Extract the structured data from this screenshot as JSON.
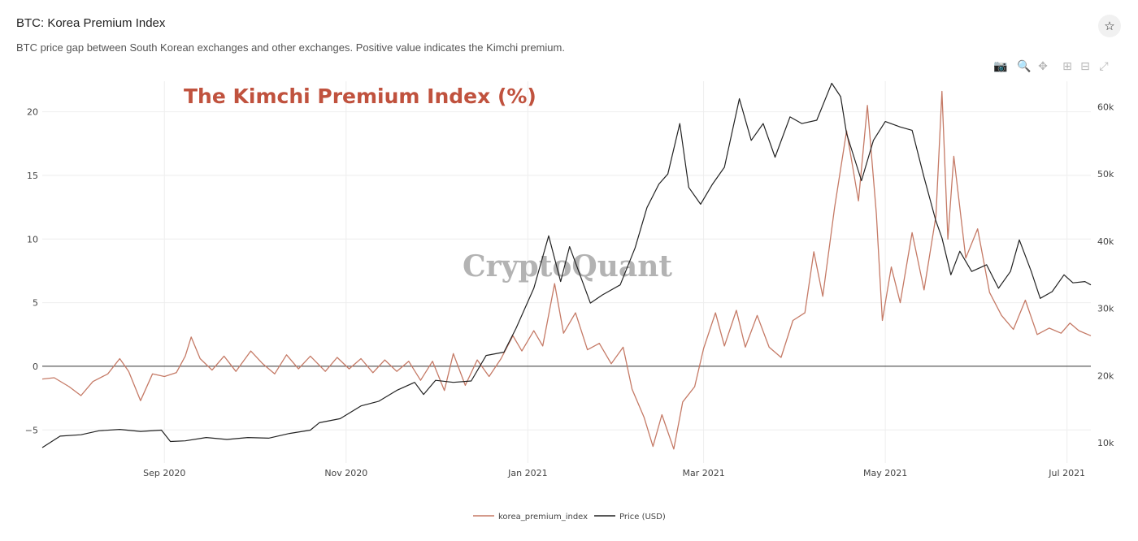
{
  "header": {
    "title": "BTC: Korea Premium Index",
    "subtitle": "BTC price gap between South Korean exchanges and other exchanges. Positive value indicates the Kimchi premium.",
    "favorite_icon": "star-icon"
  },
  "modebar": {
    "buttons": [
      {
        "name": "camera-icon",
        "glyph": "📷"
      },
      {
        "name": "zoom-icon",
        "glyph": "🔍"
      },
      {
        "name": "pan-icon",
        "glyph": "✥"
      },
      {
        "name": "zoom-in-icon",
        "glyph": "⊞"
      },
      {
        "name": "zoom-out-icon",
        "glyph": "⊟"
      },
      {
        "name": "autoscale-icon",
        "glyph": "⤢"
      }
    ]
  },
  "annotation": {
    "text": "The Kimchi Premium Index (%)",
    "color": "#c0523e"
  },
  "watermark": "CryptoQuant",
  "chart_data": {
    "type": "line",
    "x_range": [
      "2020-07-22",
      "2021-07-09"
    ],
    "y_left_range": [
      -7.6,
      22.4
    ],
    "y_right_range": [
      7000,
      63800
    ],
    "x_ticks": [
      {
        "date": "2020-09-01",
        "label": "Sep 2020"
      },
      {
        "date": "2020-11-01",
        "label": "Nov 2020"
      },
      {
        "date": "2021-01-01",
        "label": "Jan 2021"
      },
      {
        "date": "2021-03-01",
        "label": "Mar 2021"
      },
      {
        "date": "2021-05-01",
        "label": "May 2021"
      },
      {
        "date": "2021-07-01",
        "label": "Jul 2021"
      }
    ],
    "y_left_ticks": [
      20,
      15,
      10,
      5,
      0,
      -5
    ],
    "y_left_tick_labels": [
      "20",
      "15",
      "10",
      "5",
      "0",
      "−5"
    ],
    "y_right_ticks": [
      60000,
      50000,
      40000,
      30000,
      20000,
      10000
    ],
    "y_right_tick_labels": [
      "60k",
      "50k",
      "40k",
      "30k",
      "20k",
      "10k"
    ],
    "grid": true,
    "legend_position": "bottom-center",
    "series": [
      {
        "name": "korea_premium_index",
        "axis": "left",
        "color": "#c57a66",
        "points": [
          [
            "2020-07-22",
            -1.0
          ],
          [
            "2020-07-26",
            -0.9
          ],
          [
            "2020-07-31",
            -1.6
          ],
          [
            "2020-08-04",
            -2.3
          ],
          [
            "2020-08-08",
            -1.2
          ],
          [
            "2020-08-13",
            -0.6
          ],
          [
            "2020-08-17",
            0.6
          ],
          [
            "2020-08-20",
            -0.4
          ],
          [
            "2020-08-24",
            -2.7
          ],
          [
            "2020-08-28",
            -0.6
          ],
          [
            "2020-09-01",
            -0.8
          ],
          [
            "2020-09-05",
            -0.5
          ],
          [
            "2020-09-08",
            0.8
          ],
          [
            "2020-09-10",
            2.3
          ],
          [
            "2020-09-13",
            0.6
          ],
          [
            "2020-09-17",
            -0.3
          ],
          [
            "2020-09-21",
            0.8
          ],
          [
            "2020-09-25",
            -0.4
          ],
          [
            "2020-09-30",
            1.2
          ],
          [
            "2020-10-04",
            0.2
          ],
          [
            "2020-10-08",
            -0.6
          ],
          [
            "2020-10-12",
            0.9
          ],
          [
            "2020-10-16",
            -0.2
          ],
          [
            "2020-10-20",
            0.8
          ],
          [
            "2020-10-25",
            -0.4
          ],
          [
            "2020-10-29",
            0.7
          ],
          [
            "2020-11-02",
            -0.2
          ],
          [
            "2020-11-06",
            0.6
          ],
          [
            "2020-11-10",
            -0.5
          ],
          [
            "2020-11-14",
            0.5
          ],
          [
            "2020-11-18",
            -0.4
          ],
          [
            "2020-11-22",
            0.4
          ],
          [
            "2020-11-26",
            -1.1
          ],
          [
            "2020-11-30",
            0.4
          ],
          [
            "2020-12-04",
            -1.9
          ],
          [
            "2020-12-07",
            1.0
          ],
          [
            "2020-12-11",
            -1.5
          ],
          [
            "2020-12-15",
            0.5
          ],
          [
            "2020-12-19",
            -0.8
          ],
          [
            "2020-12-23",
            0.6
          ],
          [
            "2020-12-27",
            2.4
          ],
          [
            "2020-12-30",
            1.2
          ],
          [
            "2021-01-03",
            2.8
          ],
          [
            "2021-01-06",
            1.6
          ],
          [
            "2021-01-10",
            6.5
          ],
          [
            "2021-01-13",
            2.6
          ],
          [
            "2021-01-17",
            4.2
          ],
          [
            "2021-01-21",
            1.3
          ],
          [
            "2021-01-25",
            1.8
          ],
          [
            "2021-01-29",
            0.2
          ],
          [
            "2021-02-02",
            1.5
          ],
          [
            "2021-02-05",
            -1.8
          ],
          [
            "2021-02-09",
            -4.0
          ],
          [
            "2021-02-12",
            -6.3
          ],
          [
            "2021-02-15",
            -3.8
          ],
          [
            "2021-02-19",
            -6.5
          ],
          [
            "2021-02-22",
            -2.8
          ],
          [
            "2021-02-26",
            -1.6
          ],
          [
            "2021-03-01",
            1.4
          ],
          [
            "2021-03-05",
            4.2
          ],
          [
            "2021-03-08",
            1.6
          ],
          [
            "2021-03-12",
            4.4
          ],
          [
            "2021-03-15",
            1.5
          ],
          [
            "2021-03-19",
            4.0
          ],
          [
            "2021-03-23",
            1.5
          ],
          [
            "2021-03-27",
            0.7
          ],
          [
            "2021-03-31",
            3.6
          ],
          [
            "2021-04-04",
            4.2
          ],
          [
            "2021-04-07",
            9.0
          ],
          [
            "2021-04-10",
            5.5
          ],
          [
            "2021-04-14",
            12.5
          ],
          [
            "2021-04-18",
            18.5
          ],
          [
            "2021-04-22",
            13.0
          ],
          [
            "2021-04-25",
            20.5
          ],
          [
            "2021-04-28",
            12.0
          ],
          [
            "2021-04-30",
            3.6
          ],
          [
            "2021-05-03",
            7.8
          ],
          [
            "2021-05-06",
            5.0
          ],
          [
            "2021-05-10",
            10.5
          ],
          [
            "2021-05-14",
            6.0
          ],
          [
            "2021-05-18",
            11.8
          ],
          [
            "2021-05-20",
            21.6
          ],
          [
            "2021-05-22",
            10.0
          ],
          [
            "2021-05-24",
            16.5
          ],
          [
            "2021-05-28",
            8.5
          ],
          [
            "2021-06-01",
            10.8
          ],
          [
            "2021-06-05",
            5.8
          ],
          [
            "2021-06-09",
            4.0
          ],
          [
            "2021-06-13",
            2.9
          ],
          [
            "2021-06-17",
            5.2
          ],
          [
            "2021-06-21",
            2.5
          ],
          [
            "2021-06-25",
            3.0
          ],
          [
            "2021-06-29",
            2.6
          ],
          [
            "2021-07-02",
            3.4
          ],
          [
            "2021-07-05",
            2.8
          ],
          [
            "2021-07-09",
            2.4
          ]
        ]
      },
      {
        "name": "Price (USD)",
        "axis": "right",
        "color": "#222222",
        "points": [
          [
            "2020-07-22",
            9300
          ],
          [
            "2020-07-28",
            11000
          ],
          [
            "2020-08-04",
            11200
          ],
          [
            "2020-08-10",
            11800
          ],
          [
            "2020-08-17",
            12000
          ],
          [
            "2020-08-24",
            11700
          ],
          [
            "2020-08-31",
            11900
          ],
          [
            "2020-09-03",
            10200
          ],
          [
            "2020-09-08",
            10300
          ],
          [
            "2020-09-15",
            10800
          ],
          [
            "2020-09-22",
            10500
          ],
          [
            "2020-09-29",
            10800
          ],
          [
            "2020-10-06",
            10700
          ],
          [
            "2020-10-13",
            11400
          ],
          [
            "2020-10-20",
            11900
          ],
          [
            "2020-10-23",
            13000
          ],
          [
            "2020-10-30",
            13600
          ],
          [
            "2020-11-06",
            15500
          ],
          [
            "2020-11-12",
            16200
          ],
          [
            "2020-11-18",
            17800
          ],
          [
            "2020-11-24",
            19000
          ],
          [
            "2020-11-27",
            17200
          ],
          [
            "2020-12-01",
            19300
          ],
          [
            "2020-12-07",
            19000
          ],
          [
            "2020-12-13",
            19200
          ],
          [
            "2020-12-18",
            23000
          ],
          [
            "2020-12-24",
            23500
          ],
          [
            "2020-12-28",
            27000
          ],
          [
            "2021-01-03",
            33000
          ],
          [
            "2021-01-08",
            40800
          ],
          [
            "2021-01-12",
            34000
          ],
          [
            "2021-01-15",
            39200
          ],
          [
            "2021-01-22",
            30800
          ],
          [
            "2021-01-26",
            32000
          ],
          [
            "2021-02-01",
            33500
          ],
          [
            "2021-02-06",
            39000
          ],
          [
            "2021-02-10",
            45000
          ],
          [
            "2021-02-14",
            48500
          ],
          [
            "2021-02-17",
            50000
          ],
          [
            "2021-02-21",
            57500
          ],
          [
            "2021-02-24",
            48000
          ],
          [
            "2021-02-28",
            45500
          ],
          [
            "2021-03-04",
            48500
          ],
          [
            "2021-03-08",
            51000
          ],
          [
            "2021-03-13",
            61200
          ],
          [
            "2021-03-17",
            55000
          ],
          [
            "2021-03-21",
            57500
          ],
          [
            "2021-03-25",
            52500
          ],
          [
            "2021-03-30",
            58500
          ],
          [
            "2021-04-03",
            57500
          ],
          [
            "2021-04-08",
            58000
          ],
          [
            "2021-04-13",
            63500
          ],
          [
            "2021-04-16",
            61500
          ],
          [
            "2021-04-18",
            56000
          ],
          [
            "2021-04-23",
            49000
          ],
          [
            "2021-04-27",
            55000
          ],
          [
            "2021-05-01",
            57800
          ],
          [
            "2021-05-06",
            57000
          ],
          [
            "2021-05-10",
            56500
          ],
          [
            "2021-05-14",
            49500
          ],
          [
            "2021-05-18",
            43000
          ],
          [
            "2021-05-20",
            40500
          ],
          [
            "2021-05-23",
            35000
          ],
          [
            "2021-05-26",
            38500
          ],
          [
            "2021-05-30",
            35500
          ],
          [
            "2021-06-04",
            36500
          ],
          [
            "2021-06-08",
            33000
          ],
          [
            "2021-06-12",
            35500
          ],
          [
            "2021-06-15",
            40200
          ],
          [
            "2021-06-19",
            35500
          ],
          [
            "2021-06-22",
            31500
          ],
          [
            "2021-06-26",
            32500
          ],
          [
            "2021-06-30",
            35000
          ],
          [
            "2021-07-03",
            33800
          ],
          [
            "2021-07-07",
            34000
          ],
          [
            "2021-07-09",
            33500
          ]
        ]
      }
    ]
  }
}
